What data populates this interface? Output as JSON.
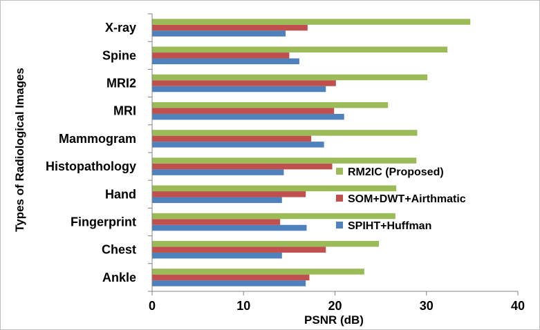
{
  "chart_data": {
    "type": "bar",
    "orientation": "horizontal",
    "title": "",
    "xlabel": "PSNR (dB)",
    "ylabel": "Types of Radiological Images",
    "xlim": [
      0,
      40
    ],
    "xticks": [
      0,
      10,
      20,
      30,
      40
    ],
    "grid": false,
    "legend_position": "center-right",
    "categories": [
      "Ankle",
      "Chest",
      "Fingerprint",
      "Hand",
      "Histopathology",
      "Mammogram",
      "MRI",
      "MRI2",
      "Spine",
      "X-ray"
    ],
    "series": [
      {
        "name": "SPIHT+Huffman",
        "color": "#4f81bd",
        "values": [
          16.8,
          14.2,
          16.9,
          14.2,
          14.4,
          18.8,
          21.0,
          19.0,
          16.1,
          14.6
        ]
      },
      {
        "name": "SOM+DWT+Airthmatic",
        "color": "#c0504d",
        "values": [
          17.2,
          19.0,
          14.0,
          16.8,
          19.7,
          17.4,
          19.9,
          20.1,
          15.0,
          17.0
        ]
      },
      {
        "name": "RM2IC (Proposed)",
        "color": "#9bbb59",
        "values": [
          23.2,
          24.8,
          26.6,
          26.7,
          28.9,
          29.0,
          25.8,
          30.1,
          32.3,
          34.8
        ]
      }
    ],
    "legend_order": [
      "RM2IC (Proposed)",
      "SOM+DWT+Airthmatic",
      "SPIHT+Huffman"
    ]
  }
}
